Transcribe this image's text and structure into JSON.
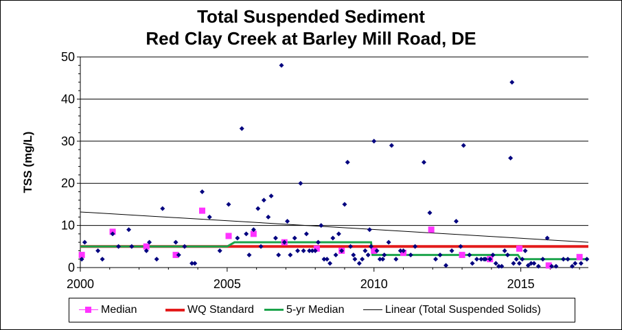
{
  "chart_data": {
    "type": "scatter",
    "title": [
      "Total Suspended Sediment",
      "Red Clay Creek at Barley Mill Road, DE"
    ],
    "xlabel": "",
    "ylabel": "TSS (mg/L)",
    "xlim": [
      2000,
      2017.3
    ],
    "ylim": [
      0,
      50
    ],
    "x_ticks": [
      "2000",
      "2005",
      "2010",
      "2015"
    ],
    "y_ticks": [
      "0",
      "10",
      "20",
      "30",
      "40",
      "50"
    ],
    "grid": "horizontal",
    "legend_position": "bottom",
    "colors": {
      "observations": "#00007f",
      "median": "#ff33ff",
      "wq_standard": "#e31b1b",
      "five_yr_median": "#1aa34a",
      "linear": "#000000"
    },
    "series": [
      {
        "name": "Total Suspended Solids",
        "marker": "diamond",
        "x": [
          2000.05,
          2000.15,
          2000.6,
          2000.75,
          2001.1,
          2001.3,
          2001.65,
          2001.75,
          2002.25,
          2002.35,
          2002.6,
          2002.8,
          2003.25,
          2003.35,
          2003.55,
          2003.8,
          2003.9,
          2004.15,
          2004.4,
          2004.75,
          2005.05,
          2005.35,
          2005.5,
          2005.65,
          2005.75,
          2005.9,
          2006.05,
          2006.15,
          2006.25,
          2006.4,
          2006.5,
          2006.65,
          2006.75,
          2006.85,
          2006.95,
          2007.05,
          2007.15,
          2007.3,
          2007.4,
          2007.5,
          2007.6,
          2007.7,
          2007.8,
          2007.9,
          2008.0,
          2008.1,
          2008.2,
          2008.3,
          2008.4,
          2008.5,
          2008.6,
          2008.7,
          2008.8,
          2008.9,
          2009.0,
          2009.1,
          2009.2,
          2009.3,
          2009.35,
          2009.5,
          2009.6,
          2009.7,
          2009.8,
          2009.85,
          2009.9,
          2010.0,
          2010.1,
          2010.2,
          2010.3,
          2010.35,
          2010.5,
          2010.6,
          2010.75,
          2010.9,
          2011.0,
          2011.25,
          2011.4,
          2011.7,
          2011.9,
          2012.1,
          2012.25,
          2012.45,
          2012.65,
          2012.8,
          2012.95,
          2013.05,
          2013.25,
          2013.35,
          2013.5,
          2013.65,
          2013.75,
          2013.8,
          2013.95,
          2014.05,
          2014.15,
          2014.25,
          2014.35,
          2014.45,
          2014.55,
          2014.65,
          2014.7,
          2014.75,
          2014.85,
          2014.95,
          2015.05,
          2015.15,
          2015.25,
          2015.35,
          2015.45,
          2015.6,
          2015.75,
          2015.9,
          2016.05,
          2016.2,
          2016.45,
          2016.6,
          2016.75,
          2016.85,
          2017.05,
          2017.25
        ],
        "y": [
          2,
          6,
          4,
          2,
          8,
          5,
          9,
          5,
          4,
          6,
          2,
          14,
          6,
          3,
          5,
          1,
          1,
          18,
          12,
          4,
          15,
          7,
          33,
          8,
          3,
          9,
          14,
          5,
          16,
          12,
          17,
          7,
          3,
          48,
          6,
          11,
          3,
          7,
          4,
          20,
          4,
          8,
          4,
          4,
          4,
          6,
          10,
          2,
          2,
          1,
          7,
          3,
          8,
          4,
          15,
          25,
          5,
          3,
          2,
          1,
          2,
          4,
          3,
          9,
          5,
          30,
          4,
          2,
          2,
          3,
          6,
          29,
          2,
          4,
          4,
          3,
          5,
          25,
          13,
          2,
          3,
          0.5,
          4,
          11,
          5,
          29,
          3,
          1,
          2,
          2,
          2,
          2,
          2,
          3,
          1,
          0.3,
          0.3,
          4,
          3,
          26,
          44,
          1,
          2,
          1,
          2,
          4,
          0.5,
          1,
          1,
          0.3,
          2,
          7,
          0.3,
          0.3,
          2,
          2,
          0.3,
          1,
          1,
          2
        ]
      },
      {
        "name": "Median",
        "marker": "square",
        "x": [
          2000.05,
          2001.1,
          2002.25,
          2003.25,
          2004.15,
          2005.05,
          2005.9,
          2006.95,
          2008.05,
          2008.9,
          2010.0,
          2011.0,
          2011.95,
          2013.0,
          2013.95,
          2014.95,
          2015.95,
          2017.0
        ],
        "y": [
          3,
          8.5,
          5,
          3,
          13.5,
          7.5,
          8,
          6,
          4.5,
          4,
          4,
          3.5,
          9,
          3,
          2,
          4.5,
          0.5,
          2.5
        ]
      },
      {
        "name": "WQ Standard",
        "type": "line",
        "x": [
          2000,
          2017.3
        ],
        "y": [
          5,
          5
        ]
      },
      {
        "name": "5-yr Median",
        "type": "step",
        "x": [
          2000,
          2005,
          2005.25,
          2009.9,
          2009.95,
          2014.9,
          2015.0,
          2017.3
        ],
        "y": [
          5,
          5,
          6,
          6,
          3,
          3,
          2,
          2
        ]
      },
      {
        "name": "Linear (Total Suspended Solids)",
        "type": "line",
        "x": [
          2000,
          2017.3
        ],
        "y": [
          13.2,
          6
        ]
      }
    ]
  },
  "legend": {
    "median": "Median",
    "wq_standard": "WQ Standard",
    "five_yr_median": "5-yr Median",
    "linear": "Linear (Total Suspended Solids)"
  }
}
